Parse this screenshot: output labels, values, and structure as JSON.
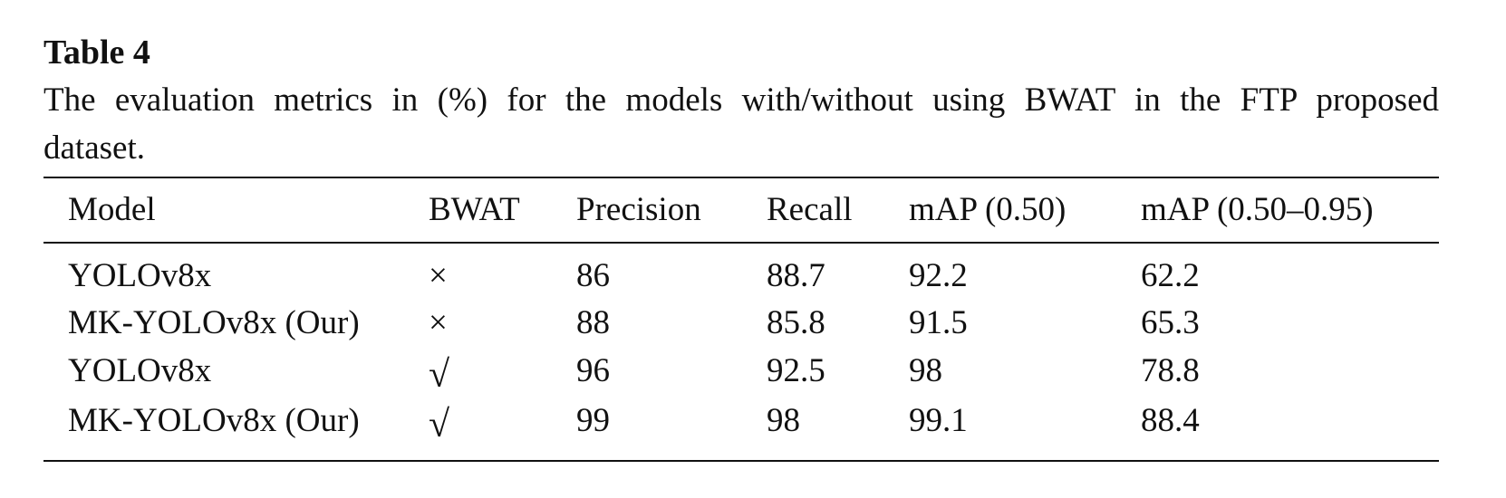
{
  "header": {
    "title": "Table 4",
    "caption": "The evaluation metrics in (%) for the models with/without using BWAT in the FTP proposed dataset."
  },
  "table": {
    "columns": [
      "Model",
      "BWAT",
      "Precision",
      "Recall",
      "mAP (0.50)",
      "mAP (0.50–0.95)"
    ],
    "rows": [
      [
        "YOLOv8x",
        "×",
        86,
        88.7,
        92.2,
        62.2
      ],
      [
        "MK-YOLOv8x (Our)",
        "×",
        88,
        85.8,
        91.5,
        65.3
      ],
      [
        "YOLOv8x",
        "√",
        96,
        92.5,
        98,
        78.8
      ],
      [
        "MK-YOLOv8x (Our)",
        "√",
        99,
        98,
        99.1,
        88.4
      ]
    ]
  }
}
